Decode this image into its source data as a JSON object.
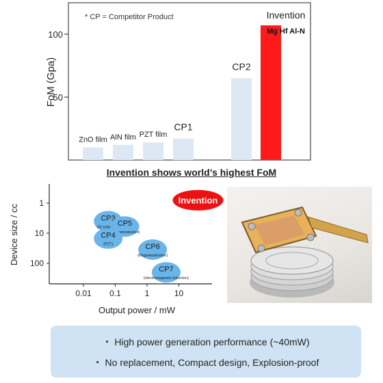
{
  "charts_note": "",
  "chart_data": [
    {
      "type": "bar",
      "title": "",
      "xlabel": "",
      "ylabel": "FoM (Gpa)",
      "ylim": [
        0,
        125
      ],
      "yticks": [
        50,
        100
      ],
      "legend_note": "* CP = Competitor Product",
      "categories": [
        "ZnO film",
        "AlN film",
        "PZT film",
        "CP1",
        "CP2",
        "Invention"
      ],
      "sublabels": [
        "",
        "",
        "",
        "",
        "",
        "Mg Hf Al-N"
      ],
      "values": [
        10,
        12,
        14,
        17,
        65,
        107
      ],
      "colors": [
        "#dce8f4",
        "#dce8f4",
        "#dce8f4",
        "#dce8f4",
        "#dce8f4",
        "#ff1a1a"
      ],
      "grid": false
    },
    {
      "type": "scatter",
      "title": "",
      "xlabel": "Output power / mW",
      "ylabel": "Device size / cc",
      "xscale": "log",
      "yscale": "log",
      "y_inverted": true,
      "xticks": [
        "0.01",
        "0.1",
        "1",
        "10"
      ],
      "yticks": [
        "1",
        "10",
        "100"
      ],
      "points": [
        {
          "name": "CP3",
          "note": "(Si substrate)",
          "x": 0.06,
          "y": 4
        },
        {
          "name": "CP5",
          "note": "(Magnetostriction)",
          "x": 0.2,
          "y": 6
        },
        {
          "name": "CP4",
          "note": "(PZT)",
          "x": 0.06,
          "y": 15
        },
        {
          "name": "CP6",
          "note": "(Magnetostriction)",
          "x": 1.5,
          "y": 35
        },
        {
          "name": "CP7",
          "note": "(electromagnetic induction)",
          "x": 4,
          "y": 200
        },
        {
          "name": "Invention",
          "note": "",
          "x": 40,
          "y": 0.8
        }
      ],
      "colors": {
        "competitor": "#69b4e8",
        "invention": "#ee1111"
      }
    }
  ],
  "headline": "Invention shows world’s highest FoM",
  "summary": {
    "line1": "・ High power generation performance (~40mW)",
    "line2": "・ No replacement, Compact design,  Explosion-proof"
  }
}
